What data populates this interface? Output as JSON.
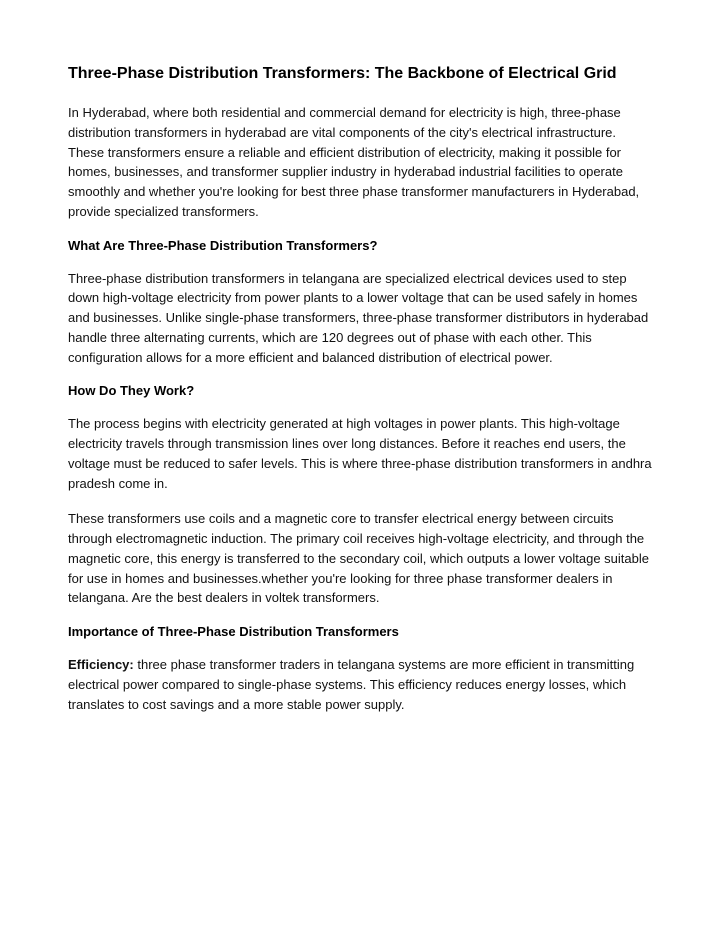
{
  "title": "Three-Phase Distribution Transformers: The Backbone of Electrical Grid",
  "intro": "In Hyderabad, where both residential and commercial demand for electricity is high, three-phase distribution transformers in hyderabad are vital components of the city's electrical infrastructure. These transformers ensure a reliable and efficient distribution of electricity, making it possible for homes, businesses, and transformer supplier industry in hyderabad industrial facilities to operate smoothly and whether you're looking for best three phase transformer manufacturers in Hyderabad, provide specialized transformers.",
  "sections": {
    "s1": {
      "heading": "What Are Three-Phase Distribution Transformers?",
      "p1": "Three-phase distribution transformers in telangana are specialized electrical devices used to step down high-voltage electricity from power plants to a lower voltage that can be used safely in homes and businesses. Unlike single-phase transformers, three-phase transformer distributors in hyderabad handle three alternating currents, which are 120 degrees out of phase with each other. This configuration allows for a more efficient and balanced distribution of electrical power."
    },
    "s2": {
      "heading": "How Do They Work?",
      "p1": "The process begins with electricity generated at high voltages in power plants. This high-voltage electricity travels through transmission lines over long distances. Before it reaches end users, the voltage must be reduced to safer levels. This is where three-phase distribution transformers in andhra pradesh come in.",
      "p2": "These transformers use coils and a magnetic core to transfer electrical energy between circuits through electromagnetic induction. The primary coil receives high-voltage electricity, and through the magnetic core, this energy is transferred to the secondary coil, which outputs a lower voltage suitable for use in homes and businesses.whether you're looking for three phase transformer dealers in telangana. Are the best dealers in voltek transformers."
    },
    "s3": {
      "heading": "Importance of Three-Phase Distribution Transformers",
      "eff_label": "Efficiency:",
      "eff_body": " three phase transformer traders in telangana systems are more efficient in transmitting electrical power compared to single-phase systems. This efficiency reduces energy losses, which translates to cost savings and a more stable power supply."
    }
  }
}
